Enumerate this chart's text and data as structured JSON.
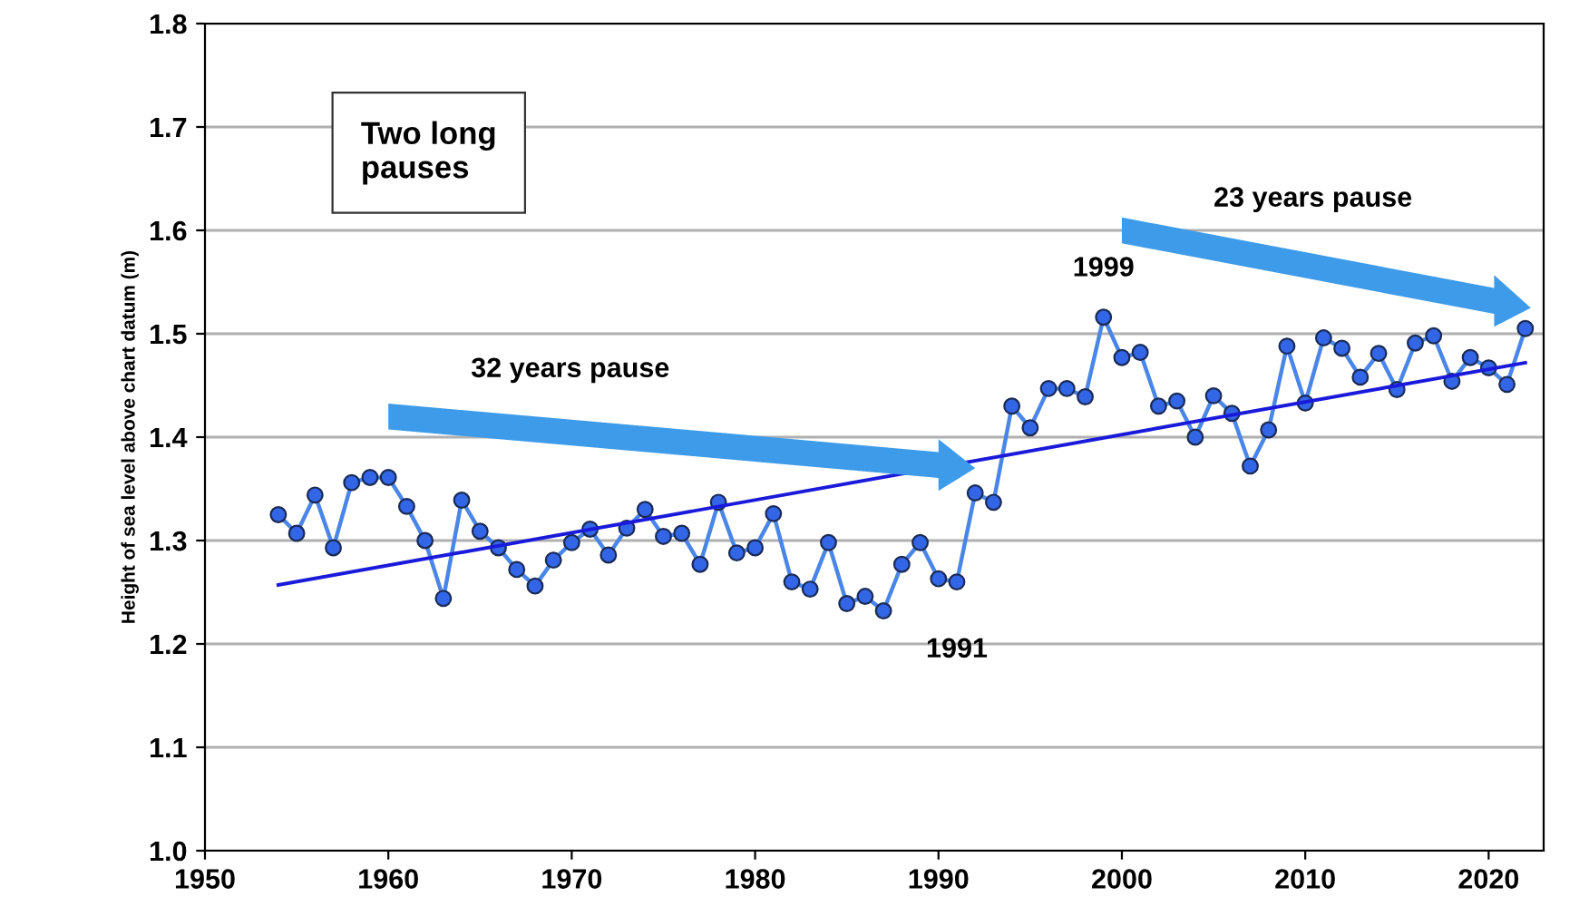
{
  "chart_data": {
    "type": "line",
    "ylabel": "Height of sea level above chart datum (m)",
    "x": [
      1954,
      1955,
      1956,
      1957,
      1958,
      1959,
      1960,
      1961,
      1962,
      1963,
      1964,
      1965,
      1966,
      1967,
      1968,
      1969,
      1970,
      1971,
      1972,
      1973,
      1974,
      1975,
      1976,
      1977,
      1978,
      1979,
      1980,
      1981,
      1982,
      1983,
      1984,
      1985,
      1986,
      1987,
      1988,
      1989,
      1990,
      1991,
      1992,
      1993,
      1994,
      1995,
      1996,
      1997,
      1998,
      1999,
      2000,
      2001,
      2002,
      2003,
      2004,
      2005,
      2006,
      2007,
      2008,
      2009,
      2010,
      2011,
      2012,
      2013,
      2014,
      2015,
      2016,
      2017,
      2018,
      2019,
      2020,
      2021,
      2022
    ],
    "series": [
      {
        "color": "#4a86e8",
        "marker": "circle",
        "values": [
          1.325,
          1.307,
          1.344,
          1.293,
          1.356,
          1.361,
          1.361,
          1.333,
          1.3,
          1.244,
          1.339,
          1.309,
          1.293,
          1.272,
          1.256,
          1.281,
          1.298,
          1.311,
          1.286,
          1.312,
          1.33,
          1.304,
          1.307,
          1.277,
          1.337,
          1.288,
          1.293,
          1.326,
          1.26,
          1.253,
          1.298,
          1.239,
          1.246,
          1.232,
          1.277,
          1.298,
          1.263,
          1.26,
          1.346,
          1.337,
          1.43,
          1.409,
          1.447,
          1.447,
          1.439,
          1.516,
          1.477,
          1.482,
          1.43,
          1.435,
          1.4,
          1.44,
          1.423,
          1.372,
          1.407,
          1.488,
          1.433,
          1.496,
          1.486,
          1.458,
          1.481,
          1.446,
          1.491,
          1.498,
          1.454,
          1.477,
          1.467,
          1.451,
          1.505
        ]
      },
      {
        "type": "line",
        "color": "#1a1adb",
        "marker": "none",
        "x": [
          1954,
          2022
        ],
        "values": [
          1.257,
          1.472
        ]
      }
    ],
    "xlim": [
      1950,
      2023
    ],
    "ylim": [
      1.0,
      1.8
    ],
    "xticks": [
      1950,
      1960,
      1970,
      1980,
      1990,
      2000,
      2010,
      2020
    ],
    "yticks": [
      {
        "value": 1.0,
        "label": "1.0"
      },
      {
        "value": 1.1,
        "label": "1.1"
      },
      {
        "value": 1.2,
        "label": "1.2"
      },
      {
        "value": 1.3,
        "label": "1.3"
      },
      {
        "value": 1.4,
        "label": "1.4"
      },
      {
        "value": 1.5,
        "label": "1.5"
      },
      {
        "value": 1.6,
        "label": "1.6"
      },
      {
        "value": 1.7,
        "label": "1.7"
      },
      {
        "value": 1.8,
        "label": "1.8"
      }
    ],
    "grid": "y",
    "annotations": [
      "Two long\npauses",
      "32 years pause",
      "23 years pause",
      {
        "text": "1999",
        "x": 1999,
        "y": 1.516
      },
      {
        "text": "1991",
        "x": 1991,
        "y": 1.26
      }
    ]
  }
}
